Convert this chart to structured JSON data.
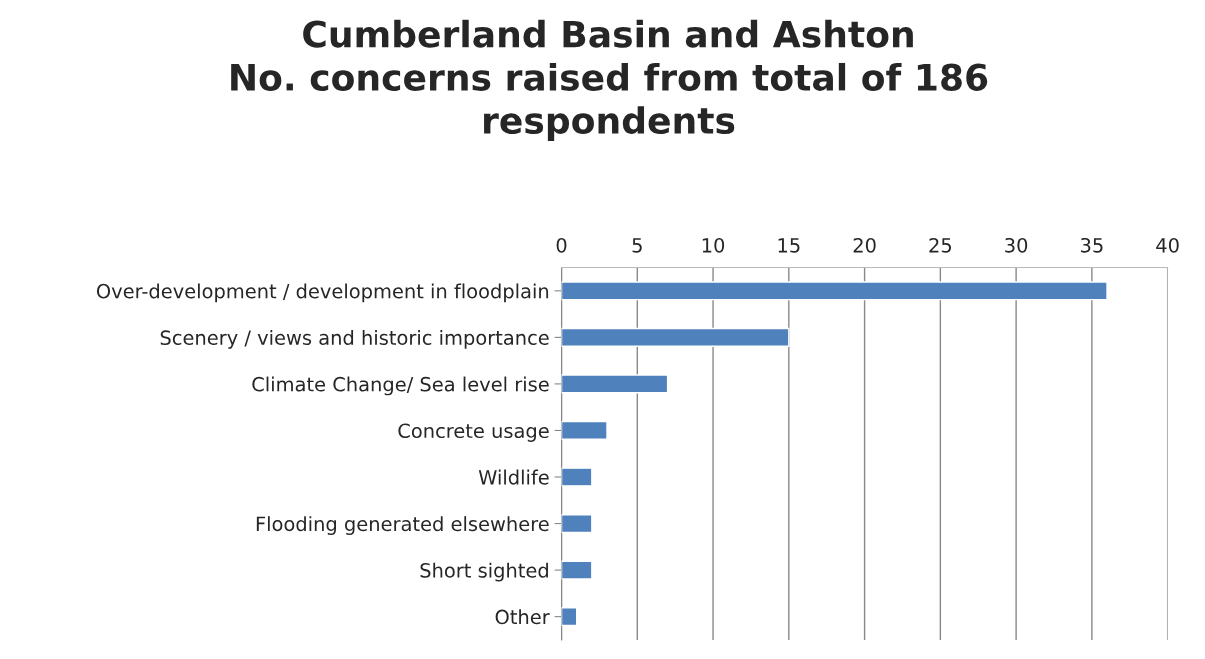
{
  "chart_data": {
    "type": "bar",
    "orientation": "horizontal",
    "title": "Cumberland Basin and Ashton\nNo. concerns raised from total of 186\nrespondents",
    "categories": [
      "Over-development / development in floodplain",
      "Scenery / views and historic importance",
      "Climate Change/ Sea level rise",
      "Concrete usage",
      "Wildlife",
      "Flooding generated elsewhere",
      "Short sighted",
      "Other"
    ],
    "values": [
      36,
      15,
      7,
      3,
      2,
      2,
      2,
      1
    ],
    "color": "#4f81bd",
    "xlim": [
      0,
      40
    ],
    "xticks": [
      0,
      5,
      10,
      15,
      20,
      25,
      30,
      35,
      40
    ],
    "grid": "x",
    "legend": false
  }
}
